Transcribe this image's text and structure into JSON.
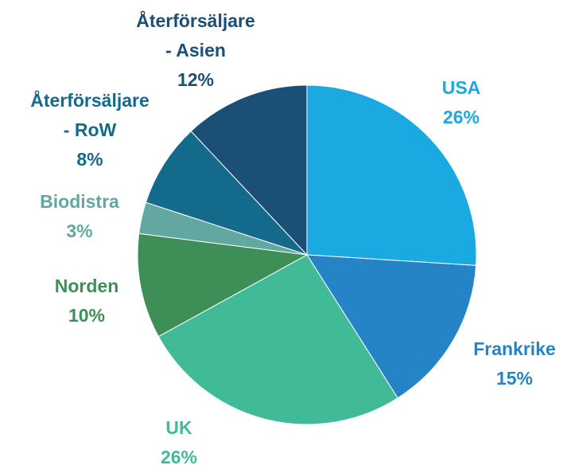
{
  "chart_data": {
    "type": "pie",
    "start_angle_deg": 0,
    "direction": "clockwise",
    "slices": [
      {
        "name": "USA",
        "value": 26,
        "percent_label": "26%",
        "color": "#1BA9E1"
      },
      {
        "name": "Frankrike",
        "value": 15,
        "percent_label": "15%",
        "color": "#2584C6"
      },
      {
        "name": "UK",
        "value": 26,
        "percent_label": "26%",
        "color": "#41BB97"
      },
      {
        "name": "Norden",
        "value": 10,
        "percent_label": "10%",
        "color": "#3E8E58"
      },
      {
        "name": "Biodistra",
        "value": 3,
        "percent_label": "3%",
        "color": "#62A8A0"
      },
      {
        "name": "Återförsäljare - RoW",
        "name_lines": [
          "Återförsäljare",
          "- RoW"
        ],
        "value": 8,
        "percent_label": "8%",
        "color": "#146A8A"
      },
      {
        "name": "Återförsäljare - Asien",
        "name_lines": [
          "Återförsäljare",
          "- Asien"
        ],
        "value": 12,
        "percent_label": "12%",
        "color": "#1B4F75"
      }
    ],
    "label_colors": {
      "USA": "#1BA9E1",
      "Frankrike": "#2584C6",
      "UK": "#41BB97",
      "Norden": "#3E8E58",
      "Biodistra": "#62A8A0",
      "Återförsäljare - RoW": "#146A8A",
      "Återförsäljare - Asien": "#1B4F75"
    }
  }
}
